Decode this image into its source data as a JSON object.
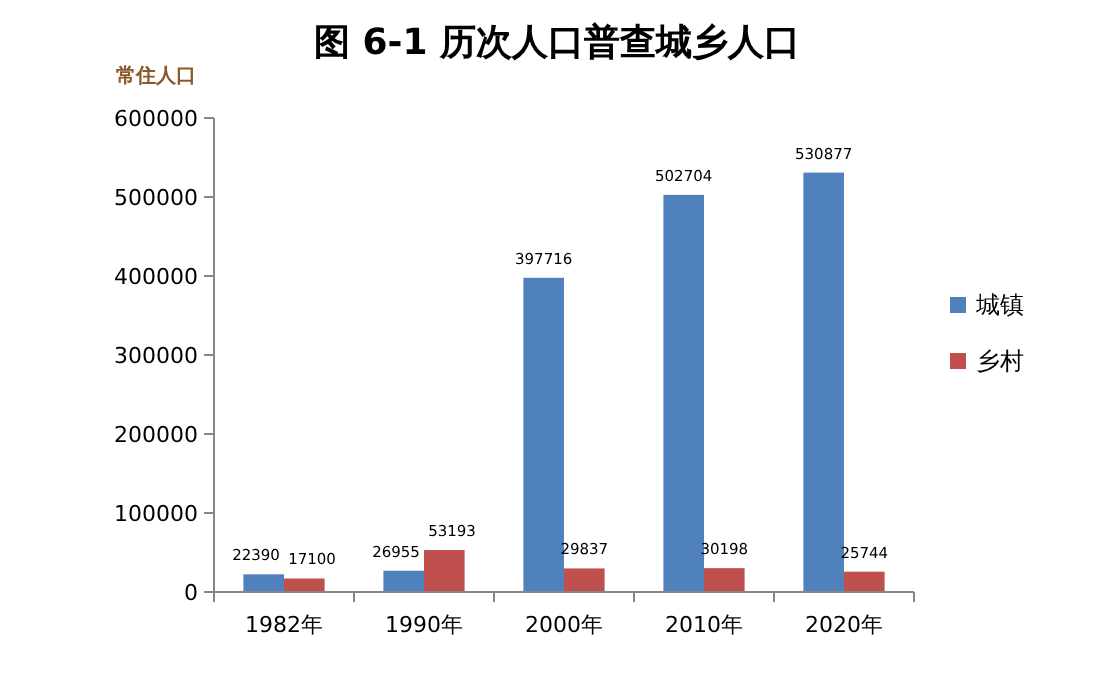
{
  "chart_data": {
    "type": "bar",
    "title": "图 6-1 历次人口普查城乡人口",
    "ylabel": "常住人口",
    "categories": [
      "1982年",
      "1990年",
      "2000年",
      "2010年",
      "2020年"
    ],
    "series": [
      {
        "name": "城镇",
        "color": "#4f81bd",
        "values": [
          22390,
          26955,
          397716,
          502704,
          530877
        ]
      },
      {
        "name": "乡村",
        "color": "#c0504d",
        "values": [
          17100,
          53193,
          29837,
          30198,
          25744
        ]
      }
    ],
    "ylim": [
      0,
      600000
    ],
    "yticks": [
      0,
      100000,
      200000,
      300000,
      400000,
      500000,
      600000
    ],
    "grid": false,
    "legend": "right",
    "data_labels": true
  }
}
